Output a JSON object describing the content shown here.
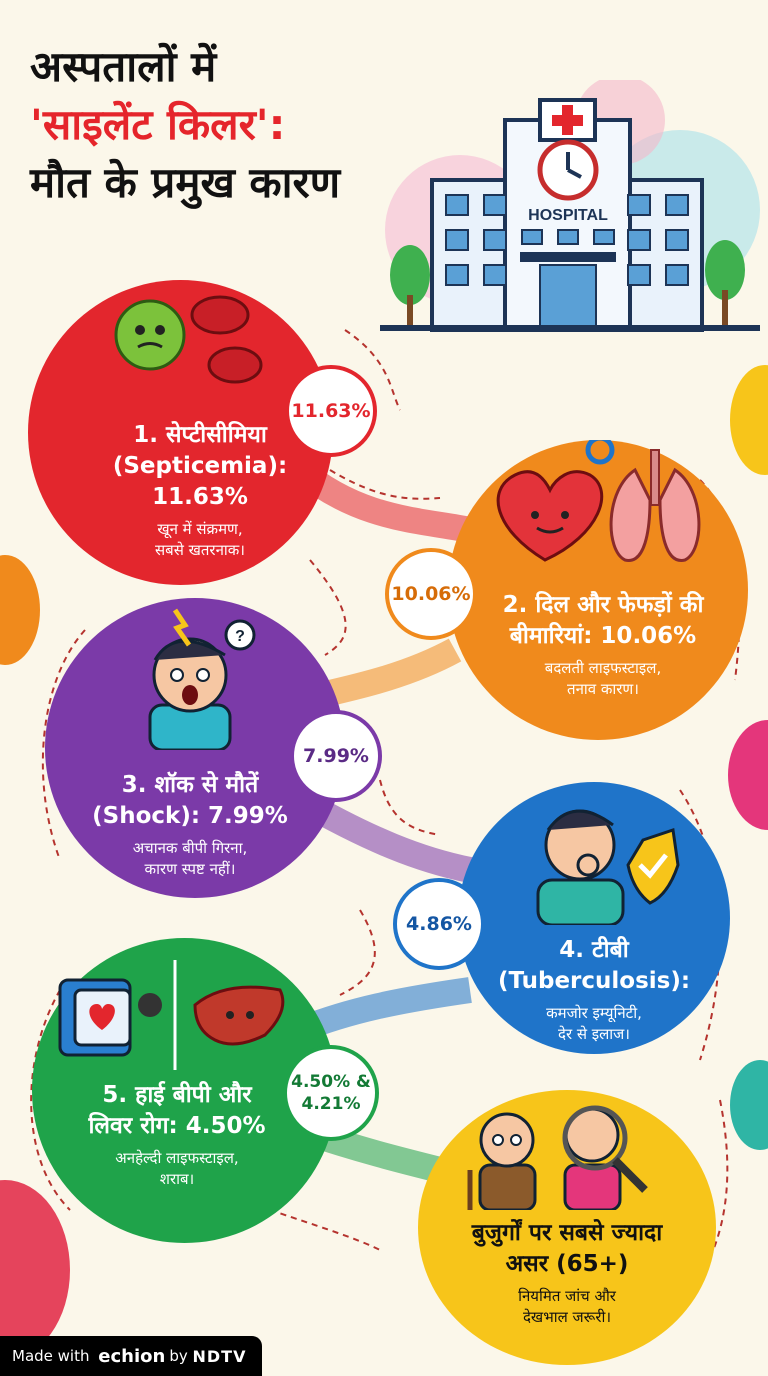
{
  "title": {
    "line1": "अस्पतालों में",
    "line2": "'साइलेंट किलर':",
    "line3": "मौत के प्रमुख कारण"
  },
  "hospital_sign": "HOSPITAL",
  "causes": [
    {
      "title": "1. सेप्टीसीमिया (Septicemia): 11.63%",
      "line1": "1. सेप्टीसीमिया",
      "line2": "(Septicemia): 11.63%",
      "desc1": "खून में संक्रमण,",
      "desc2": "सबसे खतरनाक।",
      "badge": "11.63%",
      "color": "#e3262d"
    },
    {
      "line1": "2. दिल और फेफड़ों की",
      "line2": "बीमारियां: 10.06%",
      "desc1": "बदलती लाइफस्टाइल,",
      "desc2": "तनाव कारण।",
      "badge": "10.06%",
      "color": "#f08a1c"
    },
    {
      "line1": "3. शॉक से मौतें",
      "line2": "(Shock): 7.99%",
      "desc1": "अचानक बीपी गिरना,",
      "desc2": "कारण स्पष्ट नहीं।",
      "badge": "7.99%",
      "color": "#7b3aa8"
    },
    {
      "line1": "4. टीबी",
      "line2": "(Tuberculosis):",
      "desc1": "कमजोर इम्यूनिटी,",
      "desc2": "देर से इलाज।",
      "badge": "4.86%",
      "color": "#1f74c9"
    },
    {
      "line1": "5. हाई बीपी और",
      "line2": "लिवर रोग: 4.50%",
      "desc1": "अनहेल्दी लाइफस्टाइल,",
      "desc2": "शराब।",
      "badge": "4.50% & 4.21%",
      "badge_l1": "4.50% &",
      "badge_l2": "4.21%",
      "color": "#1fa34a"
    },
    {
      "line1": "बुजुर्गों पर सबसे ज्यादा",
      "line2": "असर (65+)",
      "desc1": "नियमित जांच और",
      "desc2": "देखभाल जरूरी।",
      "color": "#f7c51a"
    }
  ],
  "footer": {
    "made_with": "Made with",
    "brand": "echion",
    "by": "by",
    "partner": "NDTV"
  }
}
